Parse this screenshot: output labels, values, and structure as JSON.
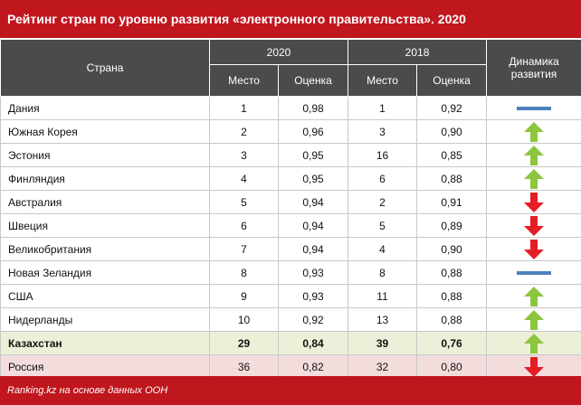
{
  "title": "Рейтинг стран по уровню развития «электронного правительства». 2020",
  "header": {
    "country": "Страна",
    "year_2020": "2020",
    "year_2018": "2018",
    "place": "Место",
    "score": "Оценка",
    "dynamics": "Динамика развития"
  },
  "rows": [
    {
      "country": "Дания",
      "place_2020": "1",
      "score_2020": "0,98",
      "place_2018": "1",
      "score_2018": "0,92",
      "dynamics": "flat"
    },
    {
      "country": "Южная Корея",
      "place_2020": "2",
      "score_2020": "0,96",
      "place_2018": "3",
      "score_2018": "0,90",
      "dynamics": "up"
    },
    {
      "country": "Эстония",
      "place_2020": "3",
      "score_2020": "0,95",
      "place_2018": "16",
      "score_2018": "0,85",
      "dynamics": "up"
    },
    {
      "country": "Финляндия",
      "place_2020": "4",
      "score_2020": "0,95",
      "place_2018": "6",
      "score_2018": "0,88",
      "dynamics": "up"
    },
    {
      "country": "Австралия",
      "place_2020": "5",
      "score_2020": "0,94",
      "place_2018": "2",
      "score_2018": "0,91",
      "dynamics": "down"
    },
    {
      "country": "Швеция",
      "place_2020": "6",
      "score_2020": "0,94",
      "place_2018": "5",
      "score_2018": "0,89",
      "dynamics": "down"
    },
    {
      "country": "Великобритания",
      "place_2020": "7",
      "score_2020": "0,94",
      "place_2018": "4",
      "score_2018": "0,90",
      "dynamics": "down"
    },
    {
      "country": "Новая Зеландия",
      "place_2020": "8",
      "score_2020": "0,93",
      "place_2018": "8",
      "score_2018": "0,88",
      "dynamics": "flat"
    },
    {
      "country": "США",
      "place_2020": "9",
      "score_2020": "0,93",
      "place_2018": "11",
      "score_2018": "0,88",
      "dynamics": "up"
    },
    {
      "country": "Нидерланды",
      "place_2020": "10",
      "score_2020": "0,92",
      "place_2018": "13",
      "score_2018": "0,88",
      "dynamics": "up"
    },
    {
      "country": "Казахстан",
      "place_2020": "29",
      "score_2020": "0,84",
      "place_2018": "39",
      "score_2018": "0,76",
      "dynamics": "up"
    },
    {
      "country": "Россия",
      "place_2020": "36",
      "score_2020": "0,82",
      "place_2018": "32",
      "score_2018": "0,80",
      "dynamics": "down"
    }
  ],
  "footer": "Ranking.kz на основе данных ООН",
  "colors": {
    "brand_red": "#c0161e",
    "header_gray": "#4b4b4b",
    "up_green": "#8cc63f",
    "down_red": "#e31e24",
    "flat_blue": "#4f81bd",
    "kz_row_bg": "#ecf0d9",
    "ru_row_bg": "#f3dcdc"
  }
}
